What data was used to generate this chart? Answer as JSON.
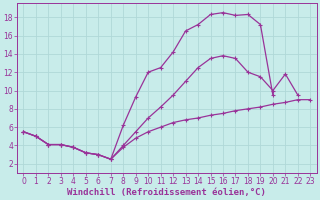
{
  "background_color": "#c8ecea",
  "grid_color": "#b0d8d8",
  "line_color": "#993399",
  "xlabel": "Windchill (Refroidissement éolien,°C)",
  "xlim": [
    -0.5,
    23.5
  ],
  "ylim": [
    1.0,
    19.5
  ],
  "xticks": [
    0,
    1,
    2,
    3,
    4,
    5,
    6,
    7,
    8,
    9,
    10,
    11,
    12,
    13,
    14,
    15,
    16,
    17,
    18,
    19,
    20,
    21,
    22,
    23
  ],
  "yticks": [
    2,
    4,
    6,
    8,
    10,
    12,
    14,
    16,
    18
  ],
  "line1_x": [
    0,
    1,
    2,
    3,
    4,
    5,
    6,
    7,
    8,
    9,
    10,
    11,
    12,
    13,
    14,
    15,
    16,
    17,
    18,
    19,
    20
  ],
  "line1_y": [
    5.5,
    5.0,
    4.1,
    4.1,
    3.8,
    3.2,
    3.0,
    2.5,
    6.2,
    9.3,
    12.0,
    12.5,
    14.2,
    16.5,
    17.2,
    18.3,
    18.5,
    18.2,
    18.3,
    17.2,
    9.5
  ],
  "line2_x": [
    0,
    1,
    2,
    3,
    4,
    5,
    6,
    7,
    8,
    9,
    10,
    11,
    12,
    13,
    14,
    15,
    16,
    17,
    18,
    19,
    20,
    21,
    22
  ],
  "line2_y": [
    5.5,
    5.0,
    4.1,
    4.1,
    3.8,
    3.2,
    3.0,
    2.5,
    4.0,
    5.5,
    7.0,
    8.2,
    9.5,
    11.0,
    12.5,
    13.5,
    13.8,
    13.5,
    12.0,
    11.5,
    10.0,
    11.8,
    9.5
  ],
  "line3_x": [
    0,
    1,
    2,
    3,
    4,
    5,
    6,
    7,
    8,
    9,
    10,
    11,
    12,
    13,
    14,
    15,
    16,
    17,
    18,
    19,
    20,
    21,
    22,
    23
  ],
  "line3_y": [
    5.5,
    5.0,
    4.1,
    4.1,
    3.8,
    3.2,
    3.0,
    2.5,
    3.8,
    4.8,
    5.5,
    6.0,
    6.5,
    6.8,
    7.0,
    7.3,
    7.5,
    7.8,
    8.0,
    8.2,
    8.5,
    8.7,
    9.0,
    9.0
  ],
  "tick_fontsize": 5.5,
  "label_fontsize": 6.5
}
